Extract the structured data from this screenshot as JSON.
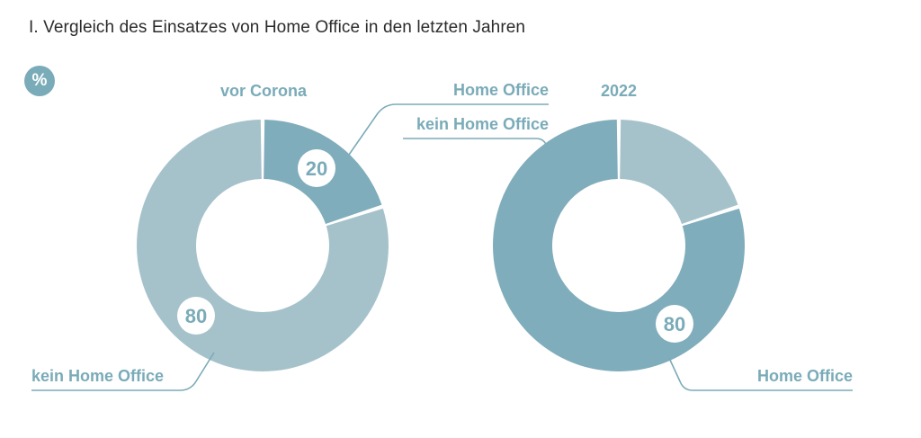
{
  "title": "I. Vergleich des Einsatzes von Home Office in den letzten Jahren",
  "unit_badge": "%",
  "colors": {
    "home_office": "#80adbb",
    "kein_home_office": "#a5c2cb",
    "text": "#7aabb8",
    "title": "#2b2b2b"
  },
  "chart_data": [
    {
      "type": "pie",
      "title": "vor Corona",
      "slices": [
        {
          "label": "Home Office",
          "value": 20
        },
        {
          "label": "kein Home Office",
          "value": 80
        }
      ]
    },
    {
      "type": "pie",
      "title": "2022",
      "slices": [
        {
          "label": "kein Home Office",
          "value": 20
        },
        {
          "label": "Home Office",
          "value": 80
        }
      ]
    }
  ]
}
